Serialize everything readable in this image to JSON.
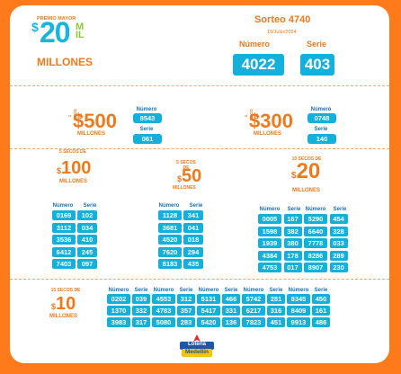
{
  "header": {
    "premio_mayor": "PREMIO MAYOR",
    "amount": "20",
    "mil": "MIL",
    "millones": "MILLONES",
    "sorteo": "Sorteo 4740",
    "date": "19/Julio/2024",
    "numero_label": "Número",
    "serie_label": "Serie",
    "numero": "4022",
    "serie": "403"
  },
  "seco500": {
    "caption": "1 SECO DE",
    "amount": "500",
    "millones": "MILLONES",
    "numero_label": "Número",
    "serie_label": "Serie",
    "numero": "8543",
    "serie": "061"
  },
  "seco300": {
    "caption": "1 SECO DE",
    "amount": "300",
    "millones": "MILLONES",
    "numero_label": "Número",
    "serie_label": "Serie",
    "numero": "0748",
    "serie": "140"
  },
  "seco100": {
    "caption": "5 SECOS DE",
    "amount": "100",
    "millones": "MILLONES",
    "numero_label": "Número",
    "serie_label": "Serie",
    "rows": [
      [
        "0169",
        "102"
      ],
      [
        "3112",
        "034"
      ],
      [
        "3536",
        "410"
      ],
      [
        "6412",
        "245"
      ],
      [
        "7403",
        "097"
      ]
    ]
  },
  "seco50": {
    "caption": "5 SECOS DE",
    "amount": "50",
    "millones": "MILLONES",
    "numero_label": "Número",
    "serie_label": "Serie",
    "rows": [
      [
        "1128",
        "341"
      ],
      [
        "3681",
        "041"
      ],
      [
        "4520",
        "018"
      ],
      [
        "7620",
        "294"
      ],
      [
        "8183",
        "435"
      ]
    ]
  },
  "seco20": {
    "caption": "10 SECOS DE",
    "amount": "20",
    "millones": "MILLONES",
    "numero_label": "Número",
    "serie_label": "Serie",
    "rows": [
      [
        "0005",
        "167",
        "5290",
        "454"
      ],
      [
        "1598",
        "382",
        "6640",
        "328"
      ],
      [
        "1939",
        "380",
        "7778",
        "033"
      ],
      [
        "4384",
        "178",
        "8286",
        "289"
      ],
      [
        "4753",
        "017",
        "8907",
        "230"
      ]
    ]
  },
  "seco10": {
    "caption": "15 SECOS DE",
    "amount": "10",
    "millones": "MILLONES",
    "numero_label": "Número",
    "serie_label": "Serie",
    "rows": [
      [
        "0202",
        "039",
        "4553",
        "312",
        "5131",
        "466",
        "5742",
        "281",
        "8345",
        "450"
      ],
      [
        "1370",
        "332",
        "4783",
        "357",
        "5417",
        "331",
        "6217",
        "316",
        "8409",
        "161"
      ],
      [
        "3983",
        "317",
        "5080",
        "283",
        "5420",
        "136",
        "7823",
        "451",
        "9913",
        "486"
      ]
    ]
  },
  "logo": {
    "line1": "Lotería",
    "line2": "de",
    "line3": "Medellín"
  },
  "colors": {
    "frame": "#ff7a1a",
    "accent": "#ef7a1e",
    "cell": "#14b0dc",
    "green": "#8dc63f",
    "label": "#1a6fb5"
  }
}
